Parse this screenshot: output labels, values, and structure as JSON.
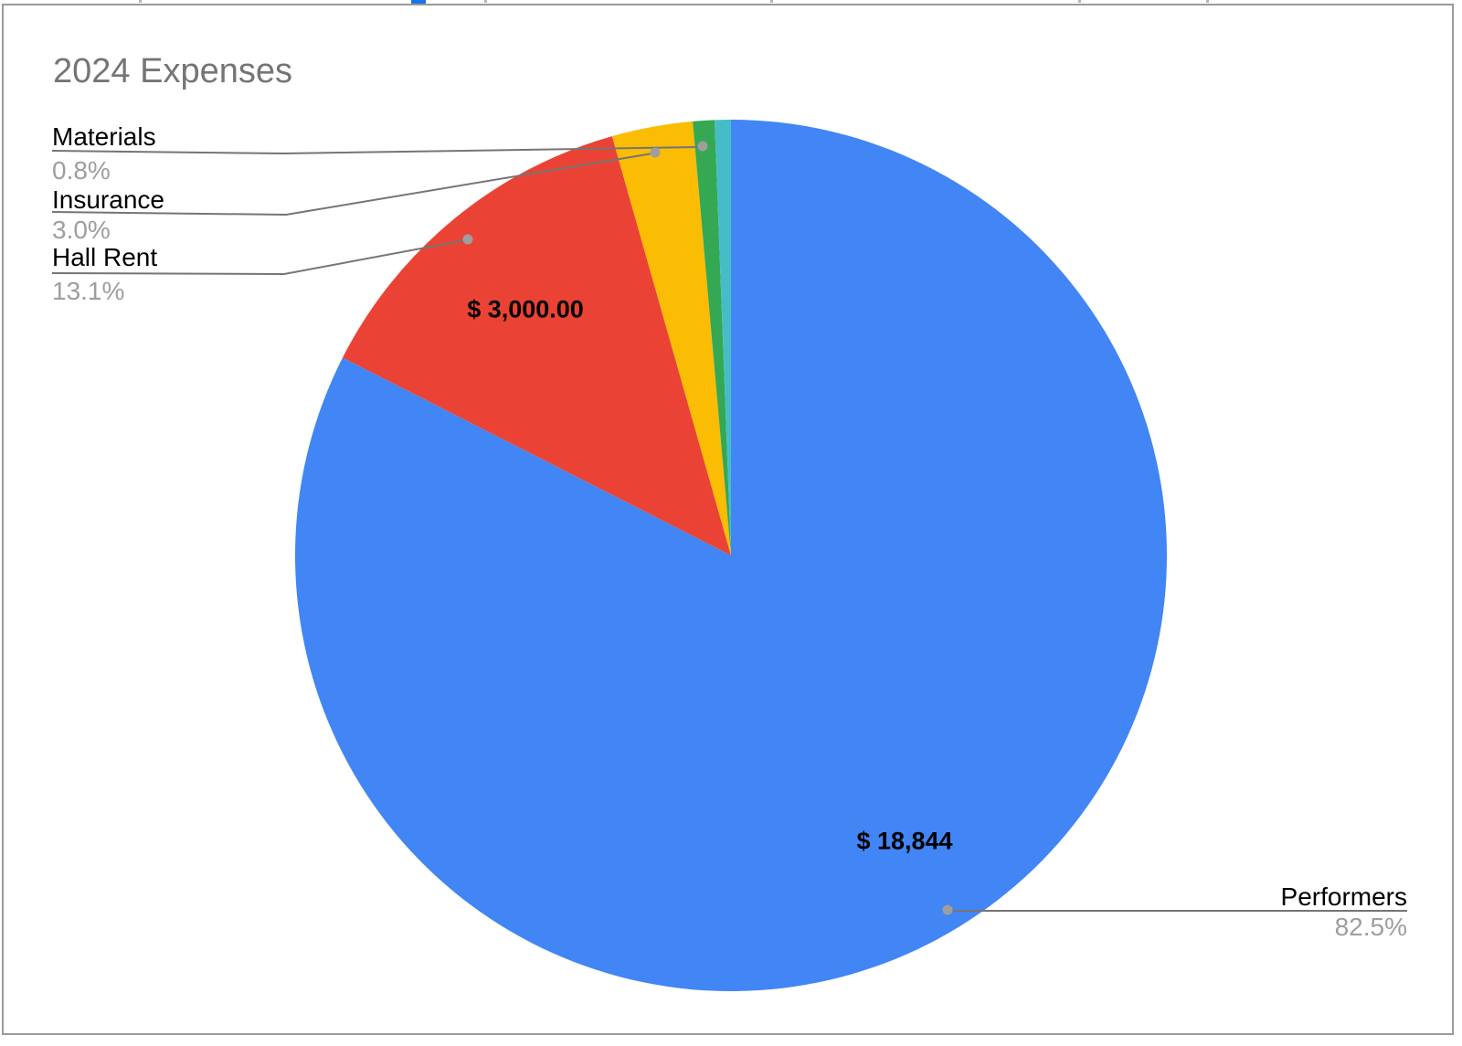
{
  "chart_data": {
    "type": "pie",
    "title": "2024 Expenses",
    "start_angle_deg": 0,
    "direction": "clockwise",
    "legend_position": "callout-labels",
    "slices": [
      {
        "label": "Performers",
        "pct": 82.5,
        "pct_label": "82.5%",
        "value_label": "$ 18,844",
        "color": "#4285F4"
      },
      {
        "label": "Hall Rent",
        "pct": 13.1,
        "pct_label": "13.1%",
        "value_label": "$ 3,000.00",
        "color": "#EA4335"
      },
      {
        "label": "Insurance",
        "pct": 3.0,
        "pct_label": "3.0%",
        "value_label": "",
        "color": "#FBBC04"
      },
      {
        "label": "Materials",
        "pct": 0.8,
        "pct_label": "0.8%",
        "value_label": "",
        "color": "#34A853"
      },
      {
        "label": "",
        "pct": 0.6,
        "pct_label": "",
        "value_label": "",
        "color": "#46BDC6"
      }
    ]
  },
  "style": {
    "frame_border_color": "#9a9a9a",
    "title_color": "#757575",
    "label_color": "#000000",
    "pct_color": "#9e9e9e",
    "leader_line_color": "#757575",
    "leader_dot_color": "#9e9e9e",
    "selection_fragment_color": "#1a73e8"
  }
}
